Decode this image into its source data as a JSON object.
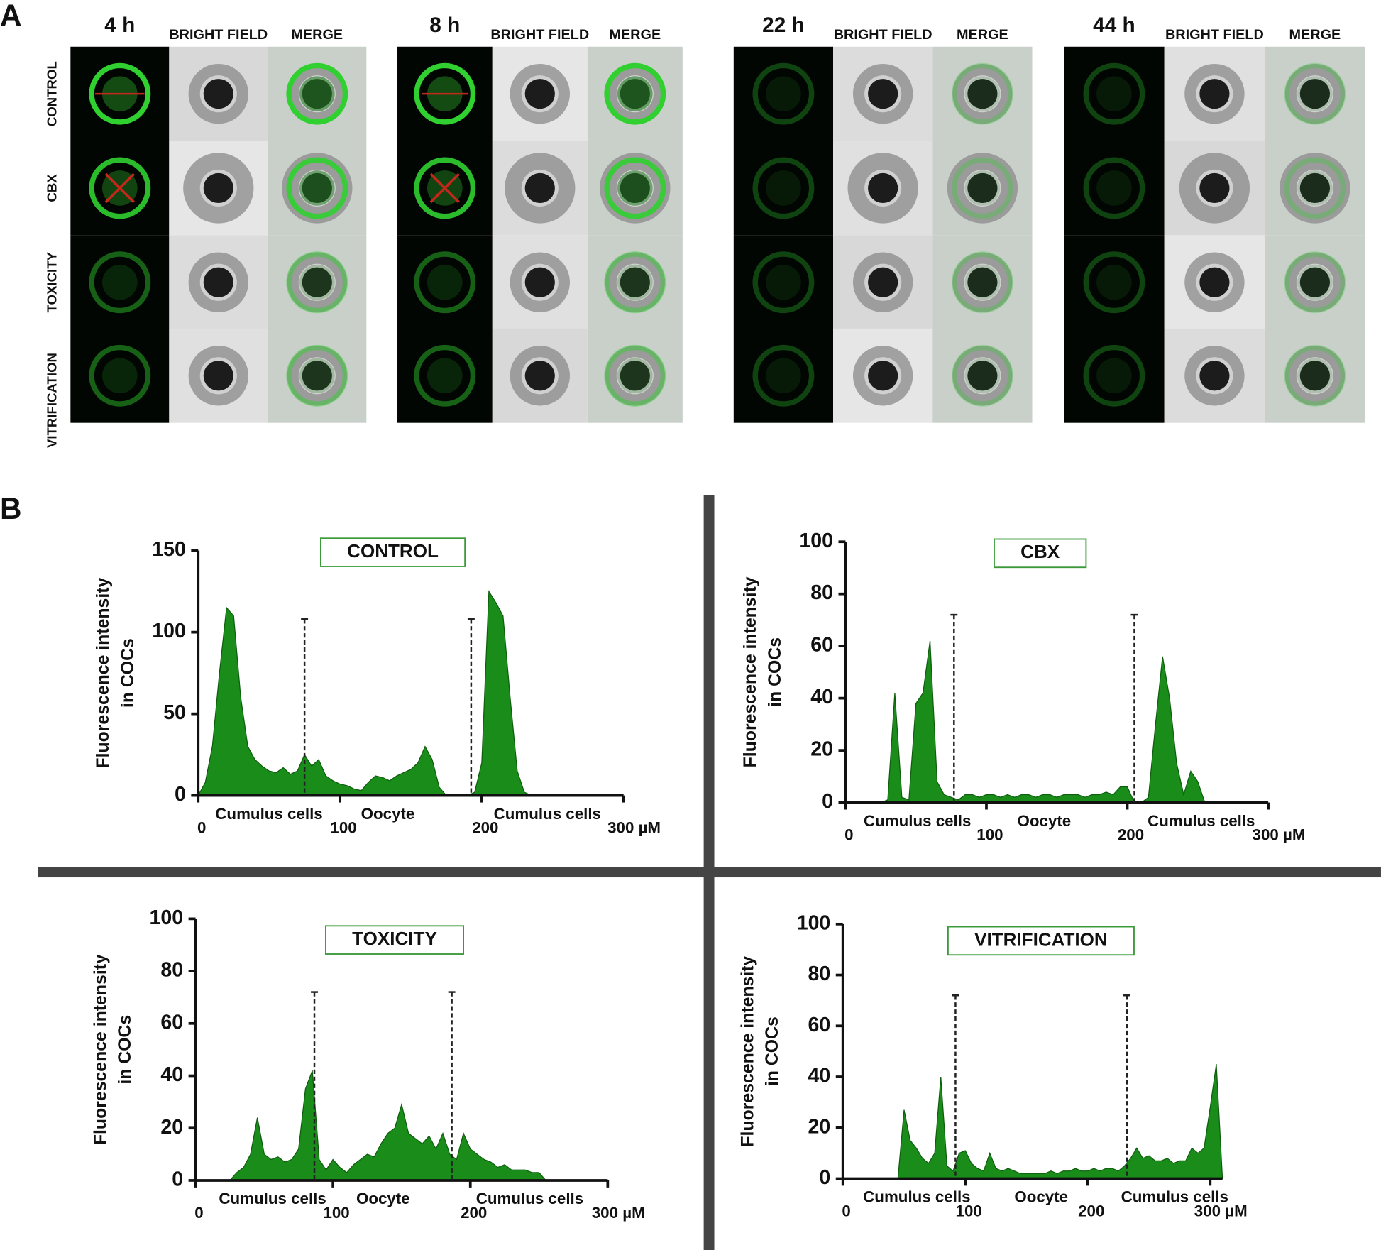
{
  "panel_labels": [
    "A",
    "B"
  ],
  "panel_a": {
    "groups": [
      {
        "time": "4 h",
        "bright_field": "BRIGHT FIELD",
        "merge": "MERGE"
      },
      {
        "time": "8 h",
        "bright_field": "BRIGHT FIELD",
        "merge": "MERGE"
      },
      {
        "time": "22 h",
        "bright_field": "BRIGHT FIELD",
        "merge": "MERGE"
      },
      {
        "time": "44 h",
        "bright_field": "BRIGHT FIELD",
        "merge": "MERGE"
      }
    ],
    "rows": [
      "CONTROL",
      "CBX",
      "TOXICITY",
      "VITRIFICATION"
    ]
  },
  "chart_data": [
    {
      "type": "area",
      "title": "CONTROL",
      "ylabel": [
        "Fluorescence intensity",
        "in COCs"
      ],
      "color": "#1a8c1a",
      "x": [
        0,
        5,
        10,
        15,
        20,
        25,
        30,
        35,
        40,
        45,
        50,
        55,
        60,
        65,
        70,
        75,
        80,
        85,
        90,
        95,
        100,
        105,
        110,
        115,
        120,
        125,
        130,
        135,
        140,
        145,
        150,
        155,
        160,
        165,
        170,
        175,
        180,
        185,
        190,
        195,
        200,
        205,
        210,
        215,
        220,
        225,
        230,
        235,
        240
      ],
      "values": [
        0,
        8,
        30,
        75,
        115,
        110,
        60,
        30,
        22,
        18,
        15,
        14,
        17,
        13,
        15,
        25,
        18,
        22,
        12,
        9,
        7,
        6,
        4,
        3,
        8,
        12,
        11,
        9,
        12,
        14,
        16,
        20,
        30,
        22,
        5,
        0,
        0,
        0,
        0,
        2,
        20,
        125,
        118,
        110,
        60,
        15,
        2,
        0,
        0
      ],
      "xlim": [
        0,
        300
      ],
      "ylim": [
        0,
        150
      ],
      "xticks": [
        0,
        100,
        200,
        {
          "value": 300,
          "label": "300 µM"
        }
      ],
      "yticks": [
        0,
        50,
        100,
        150
      ],
      "regions": [
        "Cumulus cells",
        "Oocyte",
        "Cumulus cells"
      ],
      "boundaries": [
        75,
        192.5
      ]
    },
    {
      "type": "area",
      "title": "CBX",
      "ylabel": [
        "Fluorescence intensity",
        "in COCs"
      ],
      "color": "#1a8c1a",
      "x": [
        0,
        5,
        10,
        15,
        20,
        25,
        30,
        35,
        40,
        45,
        50,
        55,
        60,
        65,
        70,
        75,
        80,
        85,
        90,
        95,
        100,
        105,
        110,
        115,
        120,
        125,
        130,
        135,
        140,
        145,
        150,
        155,
        160,
        165,
        170,
        175,
        180,
        185,
        190,
        195,
        200,
        205,
        210,
        215,
        220,
        225,
        230,
        235,
        240,
        245,
        250,
        255
      ],
      "values": [
        0,
        0,
        0,
        0,
        0,
        0,
        1,
        42,
        2,
        1,
        38,
        42,
        62,
        8,
        3,
        2,
        1,
        3,
        3,
        2,
        3,
        3,
        2,
        3,
        2,
        3,
        3,
        2,
        3,
        3,
        2,
        3,
        3,
        3,
        2,
        3,
        3,
        4,
        3,
        6,
        6,
        0,
        0,
        2,
        30,
        56,
        40,
        15,
        3,
        12,
        8,
        0
      ],
      "xlim": [
        0,
        300
      ],
      "ylim": [
        0,
        100
      ],
      "xticks": [
        0,
        100,
        200,
        {
          "value": 300,
          "label": "300 µM"
        }
      ],
      "yticks": [
        0,
        20,
        40,
        60,
        80,
        100
      ],
      "regions": [
        "Cumulus cells",
        "Oocyte",
        "Cumulus cells"
      ],
      "boundaries": [
        77,
        205
      ]
    },
    {
      "type": "area",
      "title": "TOXICITY",
      "ylabel": [
        "Fluorescence intensity",
        "in COCs"
      ],
      "color": "#1a8c1a",
      "x": [
        25,
        30,
        35,
        40,
        45,
        50,
        55,
        60,
        65,
        70,
        75,
        80,
        85,
        90,
        95,
        100,
        105,
        110,
        115,
        120,
        125,
        130,
        135,
        140,
        145,
        150,
        155,
        160,
        165,
        170,
        175,
        180,
        185,
        190,
        195,
        200,
        205,
        210,
        215,
        220,
        225,
        230,
        235,
        240,
        245,
        250,
        255
      ],
      "values": [
        0,
        3,
        5,
        10,
        24,
        10,
        8,
        9,
        7,
        8,
        12,
        35,
        42,
        8,
        4,
        8,
        5,
        3,
        6,
        8,
        10,
        9,
        14,
        18,
        20,
        29,
        18,
        16,
        14,
        17,
        12,
        18,
        10,
        8,
        18,
        12,
        10,
        8,
        7,
        5,
        6,
        4,
        4,
        4,
        3,
        3,
        0
      ],
      "xlim": [
        0,
        300
      ],
      "ylim": [
        0,
        100
      ],
      "xticks": [
        0,
        100,
        200,
        {
          "value": 300,
          "label": "300 µM"
        }
      ],
      "yticks": [
        0,
        20,
        40,
        60,
        80,
        100
      ],
      "regions": [
        "Cumulus cells",
        "Oocyte",
        "Cumulus cells"
      ],
      "boundaries": [
        86.5,
        186.5
      ]
    },
    {
      "type": "area",
      "title": "VITRIFICATION",
      "ylabel": [
        "Fluorescence intensity",
        "in COCs"
      ],
      "color": "#1a8c1a",
      "x": [
        45,
        50,
        55,
        60,
        65,
        70,
        75,
        80,
        85,
        90,
        95,
        100,
        105,
        110,
        115,
        120,
        125,
        130,
        135,
        140,
        145,
        150,
        155,
        160,
        165,
        170,
        175,
        180,
        185,
        190,
        195,
        200,
        205,
        210,
        215,
        220,
        225,
        230,
        235,
        240,
        245,
        250,
        255,
        260,
        265,
        270,
        275,
        280,
        285,
        290,
        295,
        300,
        305,
        310
      ],
      "values": [
        0,
        27,
        15,
        12,
        8,
        6,
        10,
        40,
        5,
        3,
        10,
        11,
        6,
        4,
        3,
        10,
        4,
        3,
        4,
        3,
        2,
        2,
        2,
        2,
        2,
        3,
        2,
        3,
        3,
        4,
        3,
        3,
        4,
        3,
        4,
        4,
        3,
        5,
        8,
        12,
        8,
        9,
        7,
        7,
        8,
        6,
        7,
        7,
        12,
        10,
        12,
        28,
        45,
        0
      ],
      "xlim": [
        0,
        310
      ],
      "ylim": [
        0,
        100
      ],
      "xticks": [
        0,
        100,
        200,
        {
          "value": 300,
          "label": "300 µM"
        }
      ],
      "yticks": [
        0,
        20,
        40,
        60,
        80,
        100
      ],
      "regions": [
        "Cumulus cells",
        "Oocyte",
        "Cumulus cells"
      ],
      "boundaries": [
        92,
        232
      ]
    }
  ]
}
